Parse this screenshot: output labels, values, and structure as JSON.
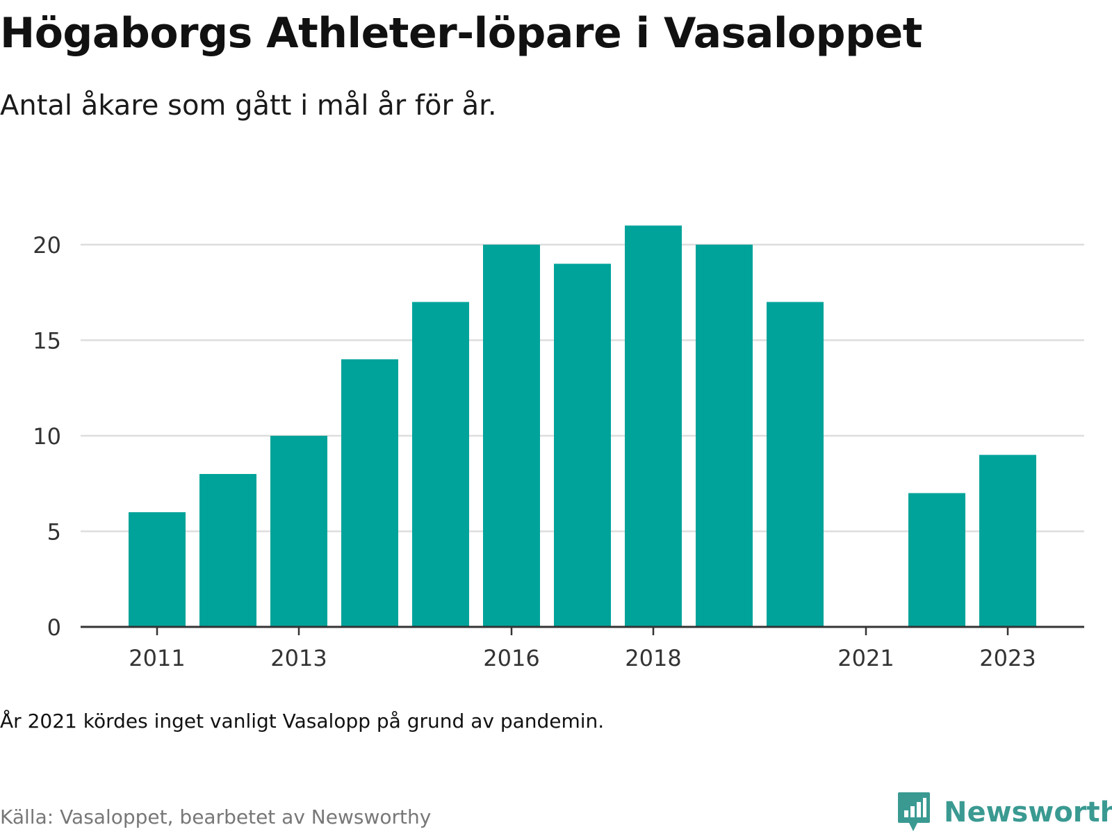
{
  "title": "Högaborgs Athleter-löpare i Vasaloppet",
  "subtitle": "Antal åkare som gått i mål år för år.",
  "note": "År 2021 kördes inget vanligt Vasalopp på grund av pandemin.",
  "source": "Källa: Vasaloppet, bearbetet av Newsworthy",
  "logo": {
    "text": "Newsworthy",
    "icon": "newsworthy-logo-icon"
  },
  "colors": {
    "bar": "#00a39a",
    "grid": "#dddddd",
    "axis": "#333333",
    "brand": "#3a9a92"
  },
  "chart_data": {
    "type": "bar",
    "categories": [
      "2011",
      "2012",
      "2013",
      "2014",
      "2015",
      "2016",
      "2017",
      "2018",
      "2019",
      "2020",
      "2021",
      "2022",
      "2023"
    ],
    "values": [
      6,
      8,
      10,
      14,
      17,
      20,
      19,
      21,
      20,
      17,
      null,
      7,
      9
    ],
    "x_tick_labels": [
      "2011",
      "2013",
      "2016",
      "2018",
      "2021",
      "2023"
    ],
    "y_ticks": [
      0,
      5,
      10,
      15,
      20
    ],
    "ylim": [
      0,
      21
    ],
    "grid": true,
    "xlabel": "",
    "ylabel": ""
  }
}
